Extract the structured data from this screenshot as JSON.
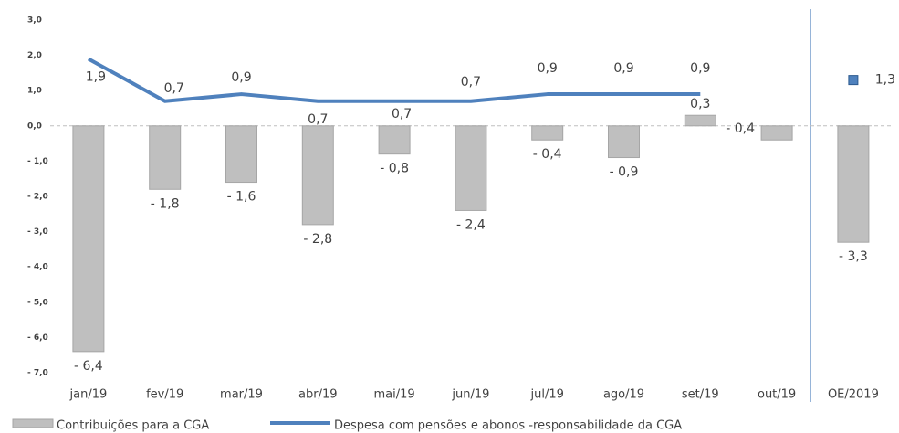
{
  "chart_data": {
    "type": "bar_line",
    "categories": [
      "jan/19",
      "fev/19",
      "mar/19",
      "abr/19",
      "mai/19",
      "jun/19",
      "jul/19",
      "ago/19",
      "set/19",
      "out/19",
      "OE/2019"
    ],
    "series": [
      {
        "name": "Contribuições para a CGA",
        "type": "bar",
        "color": "#bfbfbf",
        "values": [
          -6.4,
          -1.8,
          -1.6,
          -2.8,
          -0.8,
          -2.4,
          -0.4,
          -0.9,
          0.3,
          -0.4,
          -3.3
        ],
        "value_labels": [
          "- 6,4",
          "- 1,8",
          "- 1,6",
          "- 2,8",
          "- 0,8",
          "- 2,4",
          "- 0,4",
          "- 0,9",
          "0,3",
          "- 0,4",
          "- 3,3"
        ]
      },
      {
        "name": "Despesa com pensões e abonos -responsabilidade da  CGA",
        "type": "line",
        "color": "#4f81bd",
        "values": [
          1.9,
          0.7,
          0.9,
          0.7,
          0.7,
          0.7,
          0.9,
          0.9,
          0.9,
          null,
          1.3
        ],
        "value_labels": [
          "1,9",
          "0,7",
          "0,9",
          "0,7",
          "0,7",
          "0,7",
          "0,9",
          "0,9",
          "0,9",
          null,
          "1,3"
        ]
      }
    ],
    "ylim": [
      -7,
      3
    ],
    "yticks": [
      {
        "value": -7,
        "label": "- 7,0"
      },
      {
        "value": -6,
        "label": "- 6,0"
      },
      {
        "value": -5,
        "label": "- 5,0"
      },
      {
        "value": -4,
        "label": "- 4,0"
      },
      {
        "value": -3,
        "label": "- 3,0"
      },
      {
        "value": -2,
        "label": "- 2,0"
      },
      {
        "value": -1,
        "label": "- 1,0"
      },
      {
        "value": 0,
        "label": "0,0"
      },
      {
        "value": 1,
        "label": "1,0"
      },
      {
        "value": 2,
        "label": "2,0"
      },
      {
        "value": 3,
        "label": "3,0"
      }
    ],
    "legend": "bottom"
  }
}
